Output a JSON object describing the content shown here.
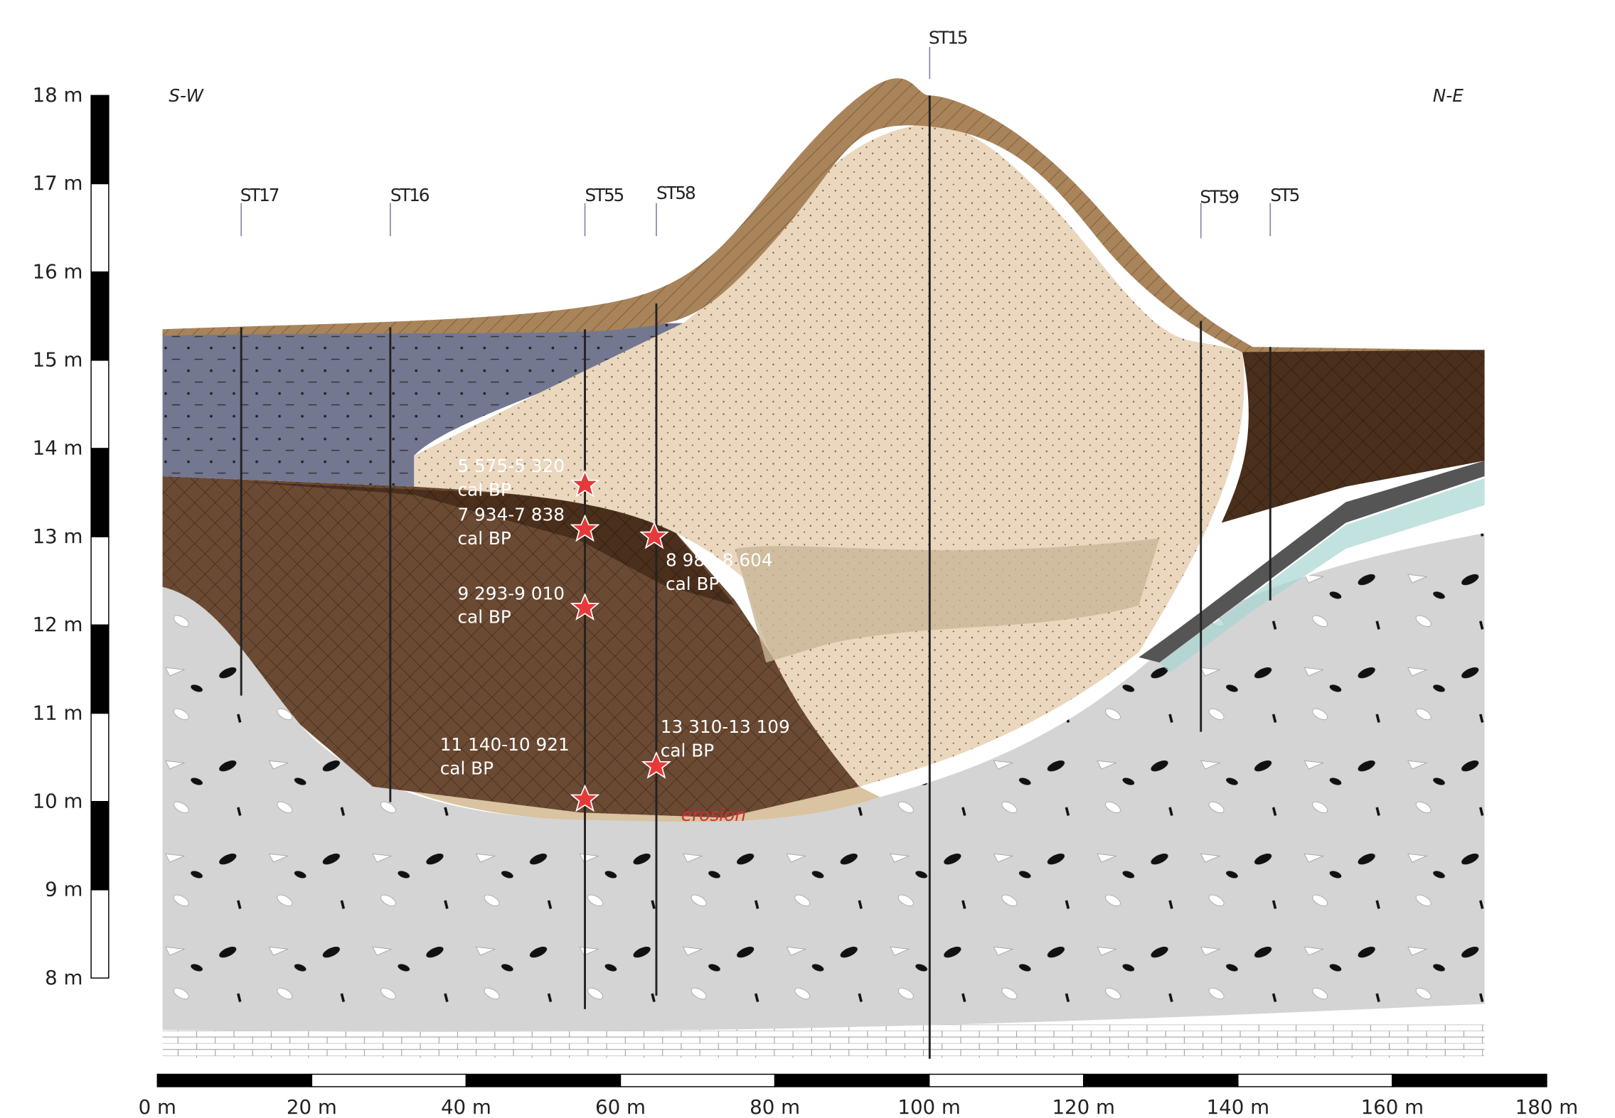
{
  "orientation": {
    "left": "S-W",
    "right": "N-E"
  },
  "vertical_scale": {
    "labels": [
      "18 m",
      "17 m",
      "16 m",
      "15 m",
      "14 m",
      "13 m",
      "12 m",
      "11 m",
      "10 m",
      "9 m",
      "8 m"
    ]
  },
  "horizontal_scale": {
    "labels": [
      "0 m",
      "20 m",
      "40 m",
      "60 m",
      "80 m",
      "100 m",
      "120 m",
      "140 m",
      "160 m",
      "180 m"
    ]
  },
  "boreholes": [
    "ST17",
    "ST16",
    "ST55",
    "ST58",
    "ST15",
    "ST59",
    "ST5"
  ],
  "dates": [
    {
      "range": "5 575-5 320",
      "unit": "cal BP"
    },
    {
      "range": "7 934-7 838",
      "unit": "cal BP"
    },
    {
      "range": "8 985-8 604",
      "unit": "cal BP"
    },
    {
      "range": "9 293-9 010",
      "unit": "cal BP"
    },
    {
      "range": "13 310-13 109",
      "unit": "cal BP"
    },
    {
      "range": "11 140-10 921",
      "unit": "cal BP"
    }
  ],
  "annotation": "erosion"
}
